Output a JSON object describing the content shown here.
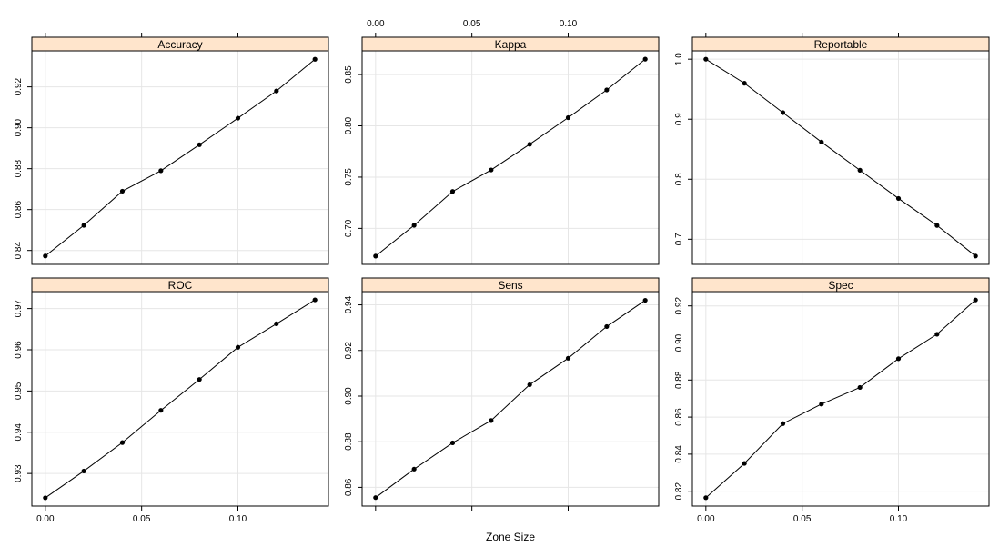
{
  "colors": {
    "strip": "#ffe5cc",
    "line": "#000000",
    "grid": "#e6e6e6"
  },
  "chart_data": {
    "type": "line",
    "xlabel": "Zone Size",
    "ylabel": "",
    "x": [
      0.0,
      0.02,
      0.04,
      0.06,
      0.08,
      0.1,
      0.12,
      0.14
    ],
    "xlim": [
      -0.007,
      0.147
    ],
    "x_ticks": [
      0.0,
      0.05,
      0.1
    ],
    "x_tick_labels": [
      "0.00",
      "0.05",
      "0.10"
    ],
    "grid": true,
    "layout": "2 rows x 3 columns",
    "panels": [
      {
        "title": "Accuracy",
        "values": [
          0.8373,
          0.8523,
          0.869,
          0.879,
          0.8917,
          0.9047,
          0.918,
          0.9335
        ],
        "ylim": [
          0.8332,
          0.9376
        ],
        "y_ticks": [
          0.84,
          0.86,
          0.88,
          0.9,
          0.92
        ],
        "y_tick_labels": [
          "0.84",
          "0.86",
          "0.88",
          "0.90",
          "0.92"
        ]
      },
      {
        "title": "Kappa",
        "values": [
          0.673,
          0.703,
          0.736,
          0.757,
          0.782,
          0.808,
          0.835,
          0.865
        ],
        "ylim": [
          0.6649,
          0.8731
        ],
        "y_ticks": [
          0.7,
          0.75,
          0.8,
          0.85
        ],
        "y_tick_labels": [
          "0.70",
          "0.75",
          "0.80",
          "0.85"
        ]
      },
      {
        "title": "Reportable",
        "values": [
          1.0,
          0.96,
          0.911,
          0.862,
          0.815,
          0.768,
          0.723,
          0.672
        ],
        "ylim": [
          0.6581,
          1.0139
        ],
        "y_ticks": [
          0.7,
          0.8,
          0.9,
          1.0
        ],
        "y_tick_labels": [
          "0.7",
          "0.8",
          "0.9",
          "1.0"
        ]
      },
      {
        "title": "ROC",
        "values": [
          0.9241,
          0.9306,
          0.9375,
          0.9453,
          0.9528,
          0.9606,
          0.9663,
          0.9721
        ],
        "ylim": [
          0.9221,
          0.9741
        ],
        "y_ticks": [
          0.93,
          0.94,
          0.95,
          0.96,
          0.97
        ],
        "y_tick_labels": [
          "0.93",
          "0.94",
          "0.95",
          "0.96",
          "0.97"
        ]
      },
      {
        "title": "Sens",
        "values": [
          0.8555,
          0.868,
          0.8795,
          0.8893,
          0.905,
          0.9166,
          0.9305,
          0.942
        ],
        "ylim": [
          0.8518,
          0.9458
        ],
        "y_ticks": [
          0.86,
          0.88,
          0.9,
          0.92,
          0.94
        ],
        "y_tick_labels": [
          "0.86",
          "0.88",
          "0.90",
          "0.92",
          "0.94"
        ]
      },
      {
        "title": "Spec",
        "values": [
          0.8165,
          0.835,
          0.8565,
          0.867,
          0.876,
          0.8915,
          0.9047,
          0.9232
        ],
        "ylim": [
          0.812,
          0.9277
        ],
        "y_ticks": [
          0.82,
          0.84,
          0.86,
          0.88,
          0.9,
          0.92
        ],
        "y_tick_labels": [
          "0.82",
          "0.84",
          "0.86",
          "0.88",
          "0.90",
          "0.92"
        ]
      }
    ]
  }
}
